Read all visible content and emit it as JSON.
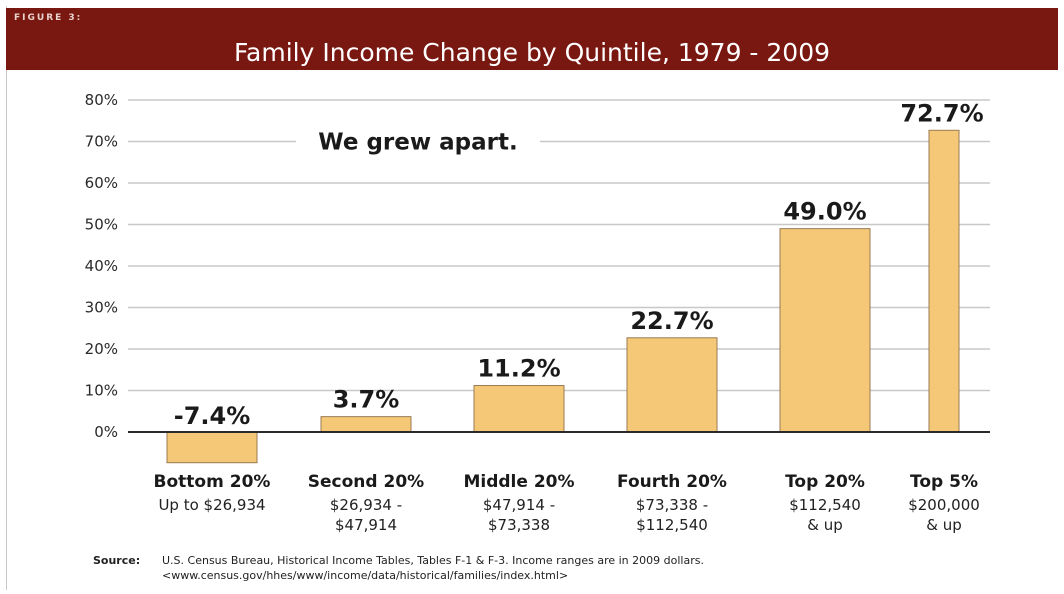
{
  "figure_label": "FIGURE 3:",
  "source": {
    "label": "Source:",
    "line1": "U.S. Census Bureau, Historical Income Tables, Tables F-1 & F-3.  Income ranges are in 2009 dollars.",
    "line2": "<www.census.gov/hhes/www/income/data/historical/families/index.html>"
  },
  "colors": {
    "header": "#791711",
    "bar": "#f5c878",
    "bar_edge": "#9a7a52",
    "grid": "#c8c8c8"
  },
  "chart_data": {
    "type": "bar",
    "title": "Family Income Change by Quintile, 1979 - 2009",
    "annotation": "We grew apart.",
    "categories": [
      "Bottom 20%",
      "Second 20%",
      "Middle 20%",
      "Fourth 20%",
      "Top 20%",
      "Top 5%"
    ],
    "ranges": [
      [
        "Up to $26,934"
      ],
      [
        "$26,934 -",
        "$47,914"
      ],
      [
        "$47,914 -",
        "$73,338"
      ],
      [
        "$73,338 -",
        "$112,540"
      ],
      [
        "$112,540",
        "& up"
      ],
      [
        "$200,000",
        "& up"
      ]
    ],
    "values": [
      -7.4,
      3.7,
      11.2,
      22.7,
      49.0,
      72.7
    ],
    "value_labels": [
      "-7.4%",
      "3.7%",
      "11.2%",
      "22.7%",
      "49.0%",
      "72.7%"
    ],
    "yticks": [
      0,
      10,
      20,
      30,
      40,
      50,
      60,
      70,
      80
    ],
    "ytick_labels": [
      "0%",
      "10%",
      "20%",
      "30%",
      "40%",
      "50%",
      "60%",
      "70%",
      "80%"
    ],
    "ylim": [
      -8,
      80
    ],
    "grid": true
  }
}
